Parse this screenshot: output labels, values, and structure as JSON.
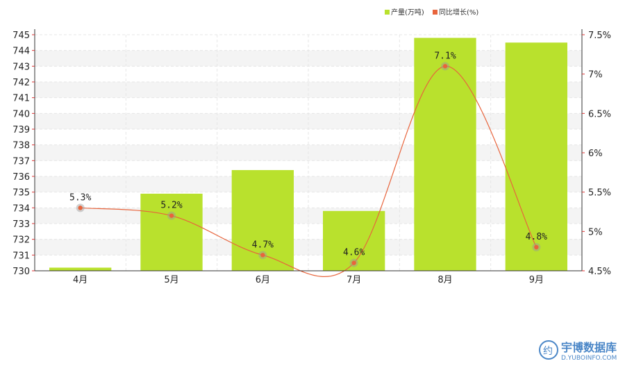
{
  "legend": [
    {
      "label": "产量(万吨)",
      "color": "#b9e12d"
    },
    {
      "label": "同比增长(%)",
      "color": "#e8643c"
    }
  ],
  "watermark": {
    "name": "宇博数据库",
    "url": "D.YUBOINFO.COM",
    "logo_glyph": "约",
    "color": "#4a86c7"
  },
  "chart_data": {
    "type": "bar",
    "categories": [
      "4月",
      "5月",
      "6月",
      "7月",
      "8月",
      "9月"
    ],
    "series": [
      {
        "name": "产量(万吨)",
        "type": "bar",
        "axis": "left",
        "color": "#b9e12d",
        "values": [
          730.2,
          734.9,
          736.4,
          733.8,
          744.8,
          744.5
        ]
      },
      {
        "name": "同比增长(%)",
        "type": "line",
        "axis": "right",
        "color": "#e8643c",
        "values": [
          5.3,
          5.2,
          4.7,
          4.6,
          7.1,
          4.8
        ],
        "labels": [
          "5.3%",
          "5.2%",
          "4.7%",
          "4.6%",
          "7.1%",
          "4.8%"
        ]
      }
    ],
    "y_left": {
      "min": 730,
      "max": 745,
      "ticks": [
        "730",
        "731",
        "732",
        "733",
        "734",
        "735",
        "736",
        "737",
        "738",
        "739",
        "740",
        "741",
        "742",
        "743",
        "744",
        "745"
      ]
    },
    "y_right": {
      "min": 4.5,
      "max": 7.5,
      "ticks": [
        "4.5%",
        "5%",
        "5.5%",
        "6%",
        "6.5%",
        "7%",
        "7.5%"
      ]
    },
    "grid": true,
    "legend_position": "top-right"
  }
}
